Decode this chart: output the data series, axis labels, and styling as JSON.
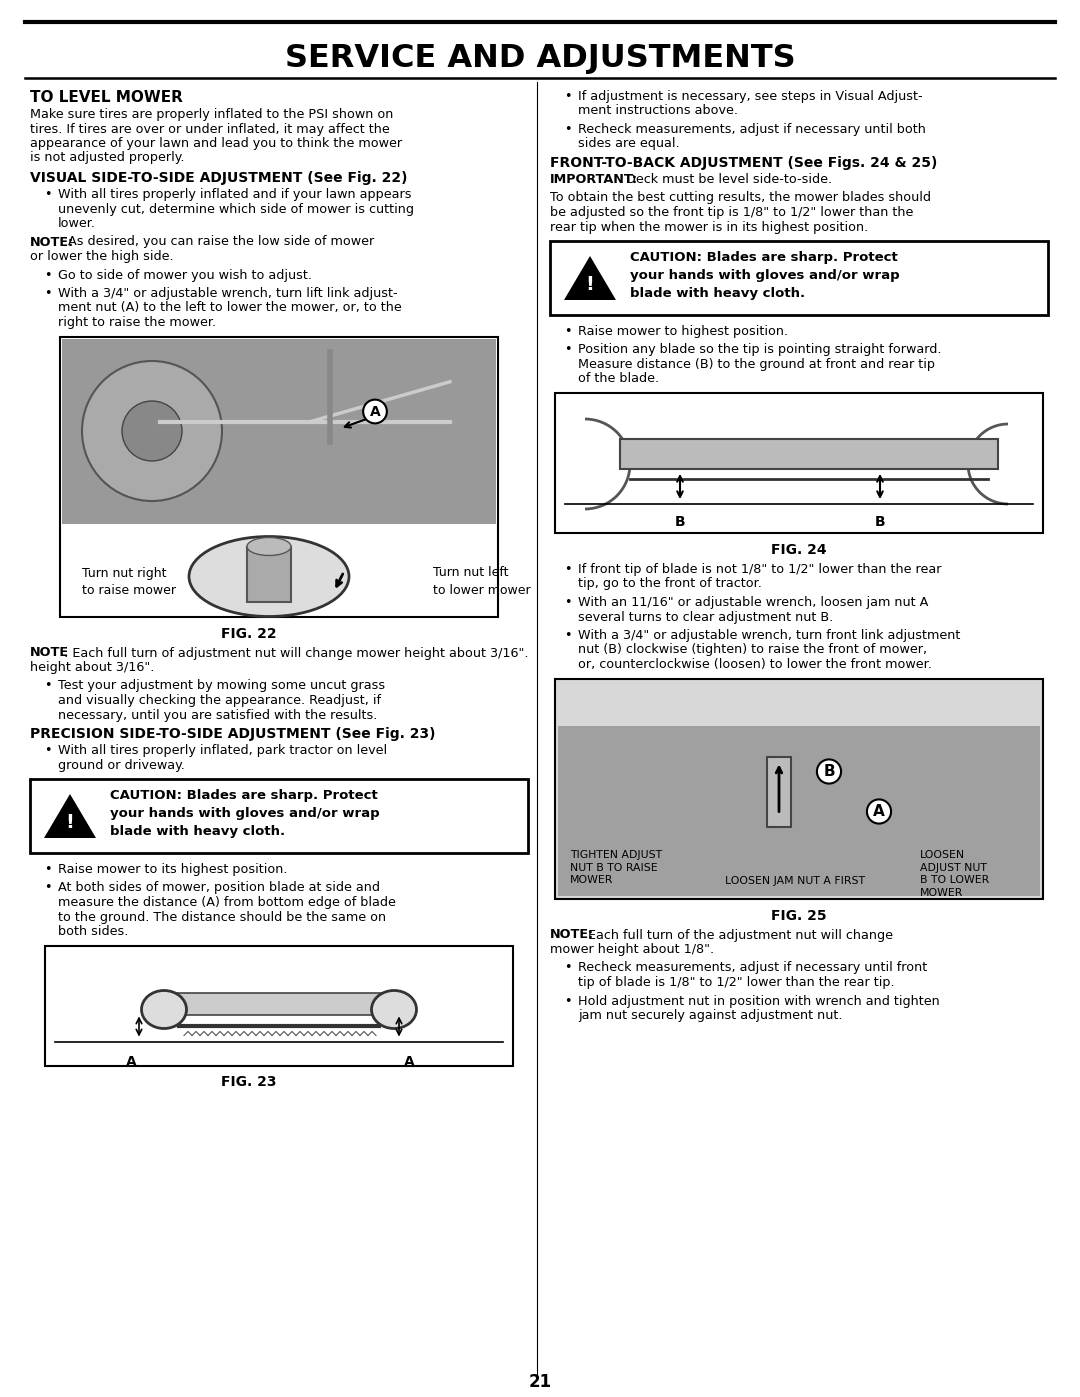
{
  "title": "SERVICE AND ADJUSTMENTS",
  "page_number": "21",
  "background_color": "#ffffff",
  "left_column": {
    "section1_head": "TO LEVEL MOWER",
    "section1_body": "Make sure tires are properly inflated to the PSI shown on tires. If tires are over or under inflated, it may affect the appearance of your lawn and lead you to think the mower is not adjusted properly.",
    "section2_head": "VISUAL SIDE-TO-SIDE ADJUSTMENT (See Fig. 22)",
    "bullet1": "With all tires properly inflated and if your lawn appears unevenly cut, determine which side of mower is cutting lower.",
    "note1_bold": "NOTE:",
    "note1_rest": " As desired, you can raise the low side of mower or lower the high side.",
    "bullet2": "Go to side of mower you wish to adjust.",
    "bullet3a": "With a 3/4\" or adjustable wrench, turn lift link adjust-",
    "bullet3b": "ment nut (A) to the left to lower the mower, or, to the",
    "bullet3c": "right to raise the mower.",
    "fig22_label_left": "Turn nut right\nto raise mower",
    "fig22_label_right": "Turn nut left\nto lower mower",
    "fig22_caption": "FIG. 22",
    "note2_bold": "NOTE",
    "note2_rest": ": Each full turn of adjustment nut will change mower height about 3/16\".",
    "bullet4a": "Test your adjustment by mowing some uncut grass",
    "bullet4b": "and visually checking the appearance. Readjust, if",
    "bullet4c": "necessary, until you are satisfied with the results.",
    "section3_head": "PRECISION SIDE-TO-SIDE ADJUSTMENT (See Fig. 23)",
    "bullet5a": "With all tires properly inflated, park tractor on level",
    "bullet5b": "ground or driveway.",
    "caution_text": "CAUTION: Blades are sharp. Protect\nyour hands with gloves and/or wrap\nblade with heavy cloth.",
    "bullet6": "Raise mower to its highest position.",
    "bullet7a": "At both sides of mower, position blade at side and",
    "bullet7b": "measure the distance (A) from bottom edge of blade",
    "bullet7c": "to the ground. The distance should be the same on",
    "bullet7d": "both sides.",
    "fig23_caption": "FIG. 23"
  },
  "right_column": {
    "bullet1a": "If adjustment is necessary, see steps in Visual Adjust-",
    "bullet1b": "ment instructions above.",
    "bullet2a": "Recheck measurements, adjust if necessary until both",
    "bullet2b": "sides are equal.",
    "section1_head": "FRONT-TO-BACK ADJUSTMENT (See Figs. 24 & 25)",
    "important_bold": "IMPORTANT:",
    "important_rest": " Deck must be level side-to-side.",
    "body1a": "To obtain the best cutting results, the mower blades should",
    "body1b": "be adjusted so the front tip is 1/8\" to 1/2\" lower than the",
    "body1c": "rear tip when the mower is in its highest position.",
    "caution_text": "CAUTION: Blades are sharp. Protect\nyour hands with gloves and/or wrap\nblade with heavy cloth.",
    "bullet3": "Raise mower to highest position.",
    "bullet4a": "Position any blade so the tip is pointing straight forward.",
    "bullet4b": "Measure distance (B) to the ground at front and rear tip",
    "bullet4c": "of the blade.",
    "fig24_caption": "FIG. 24",
    "bullet5a": "If front tip of blade is not 1/8\" to 1/2\" lower than the rear",
    "bullet5b": "tip, go to the front of tractor.",
    "bullet6a": "With an 11/16\" or adjustable wrench, loosen jam nut A",
    "bullet6b": "several turns to clear adjustment nut B.",
    "bullet7a": "With a 3/4\" or adjustable wrench, turn front link adjustment",
    "bullet7b": "nut (B) clockwise (tighten) to raise the front of mower,",
    "bullet7c": "or, counterclockwise (loosen) to lower the front mower.",
    "fig25_label_tighten": "TIGHTEN ADJUST\nNUT B TO RAISE\nMOWER",
    "fig25_label_loosen_jam": "LOOSEN JAM NUT A FIRST",
    "fig25_label_loosen": "LOOSEN\nADJUST NUT\nB TO LOWER\nMOWER",
    "fig25_caption": "FIG. 25",
    "note3_bold": "NOTE:",
    "note3_rest": " Each full turn of the adjustment nut will change mower height about 1/8\".",
    "bullet8a": "Recheck measurements, adjust if necessary until front",
    "bullet8b": "tip of blade is 1/8\" to 1/2\" lower than the rear tip.",
    "bullet9a": "Hold adjustment nut in position with wrench and tighten",
    "bullet9b": "jam nut securely against adjustment nut."
  }
}
